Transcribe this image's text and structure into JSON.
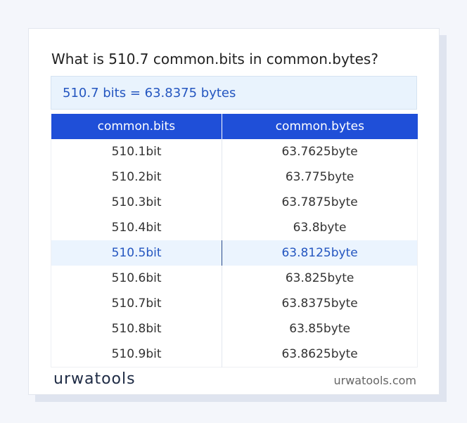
{
  "header": {
    "title": "What is 510.7 common.bits in common.bytes?"
  },
  "result": "510.7 bits = 63.8375 bytes",
  "table": {
    "columns": [
      "common.bits",
      "common.bytes"
    ],
    "rows": [
      [
        "510.1bit",
        "63.7625byte"
      ],
      [
        "510.2bit",
        "63.775byte"
      ],
      [
        "510.3bit",
        "63.7875byte"
      ],
      [
        "510.4bit",
        "63.8byte"
      ],
      [
        "510.5bit",
        "63.8125byte"
      ],
      [
        "510.6bit",
        "63.825byte"
      ],
      [
        "510.7bit",
        "63.8375byte"
      ],
      [
        "510.8bit",
        "63.85byte"
      ],
      [
        "510.9bit",
        "63.8625byte"
      ]
    ]
  },
  "footer": {
    "logo": "urwatools",
    "site": "urwatools.com"
  }
}
